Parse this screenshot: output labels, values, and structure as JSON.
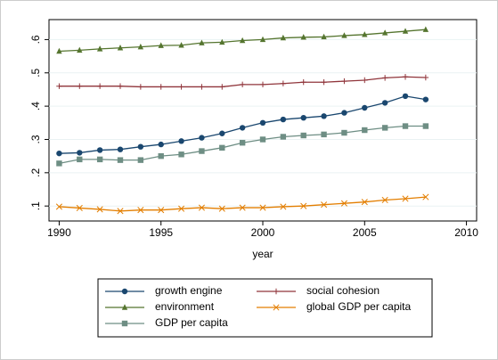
{
  "chart_data": {
    "type": "line",
    "x_label": "year",
    "x": [
      1990,
      1991,
      1992,
      1993,
      1994,
      1995,
      1996,
      1997,
      1998,
      1999,
      2000,
      2001,
      2002,
      2003,
      2004,
      2005,
      2006,
      2007,
      2008
    ],
    "xlim": [
      1989.5,
      2010.5
    ],
    "xticks": [
      1990,
      1995,
      2000,
      2005,
      2010
    ],
    "ylim": [
      0.055,
      0.66
    ],
    "yticks": [
      {
        "value": 0.1,
        "label": ".1"
      },
      {
        "value": 0.2,
        "label": ".2"
      },
      {
        "value": 0.3,
        "label": ".3"
      },
      {
        "value": 0.4,
        "label": ".4"
      },
      {
        "value": 0.5,
        "label": ".5"
      },
      {
        "value": 0.6,
        "label": ".6"
      }
    ],
    "grid": true,
    "series": [
      {
        "name": "growth engine",
        "color": "#1a476f",
        "marker": "circle",
        "values": [
          0.258,
          0.26,
          0.268,
          0.27,
          0.278,
          0.285,
          0.295,
          0.305,
          0.318,
          0.335,
          0.35,
          0.36,
          0.365,
          0.37,
          0.38,
          0.395,
          0.41,
          0.43,
          0.42
        ]
      },
      {
        "name": "social cohesion",
        "color": "#90353b",
        "marker": "plus",
        "values": [
          0.46,
          0.46,
          0.46,
          0.46,
          0.458,
          0.458,
          0.458,
          0.458,
          0.458,
          0.465,
          0.465,
          0.468,
          0.472,
          0.472,
          0.475,
          0.478,
          0.485,
          0.488,
          0.486
        ]
      },
      {
        "name": "environment",
        "color": "#55752f",
        "marker": "triangle",
        "values": [
          0.565,
          0.568,
          0.572,
          0.575,
          0.578,
          0.582,
          0.583,
          0.59,
          0.592,
          0.597,
          0.6,
          0.605,
          0.607,
          0.608,
          0.612,
          0.615,
          0.62,
          0.625,
          0.63
        ]
      },
      {
        "name": "global GDP per capita",
        "color": "#e37e00",
        "marker": "x",
        "values": [
          0.098,
          0.094,
          0.09,
          0.085,
          0.088,
          0.088,
          0.092,
          0.095,
          0.092,
          0.095,
          0.095,
          0.098,
          0.1,
          0.104,
          0.108,
          0.112,
          0.118,
          0.122,
          0.127
        ]
      },
      {
        "name": "GDP per capita",
        "color": "#6e8e84",
        "marker": "square",
        "values": [
          0.228,
          0.24,
          0.24,
          0.238,
          0.238,
          0.25,
          0.255,
          0.265,
          0.275,
          0.29,
          0.3,
          0.308,
          0.312,
          0.315,
          0.32,
          0.328,
          0.335,
          0.34,
          0.34
        ]
      }
    ]
  }
}
